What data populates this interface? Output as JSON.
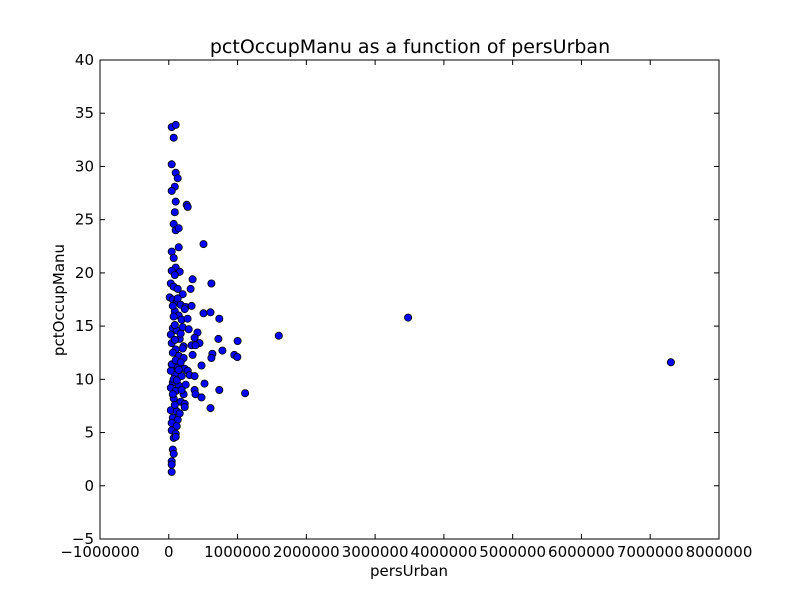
{
  "chart_data": {
    "type": "scatter",
    "title": "pctOccupManu as a function of persUrban",
    "xlabel": "persUrban",
    "ylabel": "pctOccupManu",
    "xlim": [
      -1000000,
      8000000
    ],
    "ylim": [
      -5,
      40
    ],
    "xticks": [
      -1000000,
      0,
      1000000,
      2000000,
      3000000,
      4000000,
      5000000,
      6000000,
      7000000,
      8000000
    ],
    "xtick_labels": [
      "−1000000",
      "0",
      "1000000",
      "2000000",
      "3000000",
      "4000000",
      "5000000",
      "6000000",
      "7000000",
      "8000000"
    ],
    "yticks": [
      -5,
      0,
      5,
      10,
      15,
      20,
      25,
      30,
      35,
      40
    ],
    "ytick_labels": [
      "−5",
      "0",
      "5",
      "10",
      "15",
      "20",
      "25",
      "30",
      "35",
      "40"
    ],
    "grid": false,
    "marker_color": "#0000ff",
    "marker_edge_color": "#000000",
    "points": [
      [
        43000,
        33.7
      ],
      [
        101000,
        33.9
      ],
      [
        72000,
        32.7
      ],
      [
        43000,
        30.2
      ],
      [
        101000,
        29.4
      ],
      [
        130000,
        28.9
      ],
      [
        87000,
        28.1
      ],
      [
        43000,
        27.7
      ],
      [
        260000,
        26.4
      ],
      [
        275000,
        26.2
      ],
      [
        87000,
        25.7
      ],
      [
        72000,
        24.6
      ],
      [
        101000,
        24.0
      ],
      [
        144000,
        24.2
      ],
      [
        101000,
        26.7
      ],
      [
        43000,
        22.0
      ],
      [
        144000,
        22.4
      ],
      [
        505000,
        22.7
      ],
      [
        72000,
        21.4
      ],
      [
        101000,
        20.5
      ],
      [
        159000,
        20.1
      ],
      [
        43000,
        20.2
      ],
      [
        87000,
        19.8
      ],
      [
        346000,
        19.4
      ],
      [
        620000,
        19.0
      ],
      [
        29000,
        19.0
      ],
      [
        72000,
        18.7
      ],
      [
        130000,
        18.5
      ],
      [
        202000,
        18.0
      ],
      [
        317000,
        18.5
      ],
      [
        14000,
        17.7
      ],
      [
        58000,
        17.5
      ],
      [
        115000,
        17.3
      ],
      [
        173000,
        17.0
      ],
      [
        246000,
        16.8
      ],
      [
        332000,
        16.9
      ],
      [
        87000,
        16.4
      ],
      [
        144000,
        16.0
      ],
      [
        231000,
        16.6
      ],
      [
        505000,
        16.2
      ],
      [
        606000,
        16.3
      ],
      [
        72000,
        15.9
      ],
      [
        188000,
        15.6
      ],
      [
        274000,
        15.7
      ],
      [
        735000,
        15.7
      ],
      [
        58000,
        14.8
      ],
      [
        115000,
        14.6
      ],
      [
        202000,
        14.9
      ],
      [
        289000,
        14.7
      ],
      [
        418000,
        14.4
      ],
      [
        159000,
        13.8
      ],
      [
        375000,
        13.9
      ],
      [
        447000,
        13.4
      ],
      [
        43000,
        13.4
      ],
      [
        216000,
        13.1
      ],
      [
        332000,
        13.2
      ],
      [
        389000,
        13.2
      ],
      [
        721000,
        13.8
      ],
      [
        1000000,
        13.6
      ],
      [
        1600000,
        14.1
      ],
      [
        3480000,
        15.8
      ],
      [
        7300000,
        11.6
      ],
      [
        101000,
        12.8
      ],
      [
        144000,
        12.2
      ],
      [
        216000,
        12.0
      ],
      [
        346000,
        12.3
      ],
      [
        779000,
        12.7
      ],
      [
        634000,
        12.4
      ],
      [
        620000,
        12.0
      ],
      [
        952000,
        12.3
      ],
      [
        996000,
        12.1
      ],
      [
        43000,
        11.4
      ],
      [
        130000,
        11.1
      ],
      [
        231000,
        11.0
      ],
      [
        275000,
        10.8
      ],
      [
        476000,
        11.3
      ],
      [
        87000,
        10.5
      ],
      [
        188000,
        10.3
      ],
      [
        303000,
        10.4
      ],
      [
        375000,
        10.3
      ],
      [
        58000,
        9.7
      ],
      [
        144000,
        9.4
      ],
      [
        246000,
        9.5
      ],
      [
        519000,
        9.6
      ],
      [
        29000,
        9.2
      ],
      [
        101000,
        8.9
      ],
      [
        216000,
        8.6
      ],
      [
        375000,
        9.0
      ],
      [
        389000,
        8.6
      ],
      [
        735000,
        9.0
      ],
      [
        1110000,
        8.7
      ],
      [
        72000,
        8.2
      ],
      [
        173000,
        7.9
      ],
      [
        231000,
        7.7
      ],
      [
        476000,
        8.3
      ],
      [
        29000,
        7.1
      ],
      [
        115000,
        7.0
      ],
      [
        231000,
        7.4
      ],
      [
        606000,
        7.3
      ],
      [
        58000,
        6.4
      ],
      [
        130000,
        6.2
      ],
      [
        43000,
        5.9
      ],
      [
        115000,
        5.6
      ],
      [
        43000,
        5.2
      ],
      [
        101000,
        4.9
      ],
      [
        72000,
        4.5
      ],
      [
        58000,
        3.4
      ],
      [
        72000,
        3.0
      ],
      [
        43000,
        2.3
      ],
      [
        43000,
        2.0
      ],
      [
        43000,
        1.3
      ],
      [
        87000,
        15.1
      ],
      [
        58000,
        12.5
      ],
      [
        101000,
        11.8
      ],
      [
        29000,
        10.8
      ],
      [
        144000,
        10.9
      ],
      [
        72000,
        10.0
      ],
      [
        187000,
        9.0
      ],
      [
        87000,
        7.6
      ],
      [
        159000,
        6.8
      ],
      [
        101000,
        4.6
      ],
      [
        130000,
        17.6
      ],
      [
        173000,
        14.3
      ],
      [
        58000,
        16.9
      ],
      [
        29000,
        14.2
      ],
      [
        87000,
        13.7
      ],
      [
        202000,
        12.9
      ],
      [
        116000,
        9.9
      ],
      [
        58000,
        8.6
      ],
      [
        173000,
        11.6
      ]
    ]
  }
}
